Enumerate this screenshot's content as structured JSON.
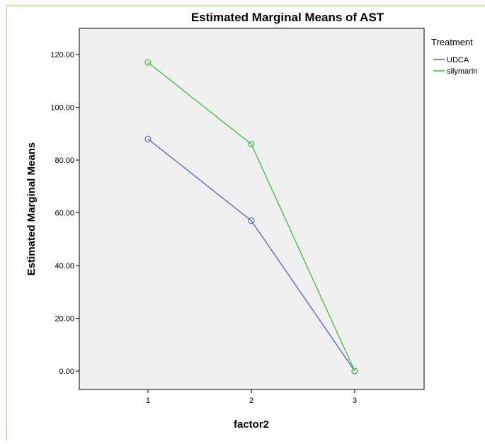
{
  "chart_data": {
    "type": "line",
    "title": "Estimated Marginal Means of AST",
    "xlabel": "factor2",
    "ylabel": "Estimated Marginal Means",
    "categories": [
      "1",
      "2",
      "3"
    ],
    "ylim": [
      0,
      120
    ],
    "yticks": [
      "0.00",
      "20.00",
      "40.00",
      "60.00",
      "80.00",
      "100.00",
      "120.00"
    ],
    "ytick_values": [
      0,
      20,
      40,
      60,
      80,
      100,
      120
    ],
    "grid": false,
    "legend": {
      "title": "Treatment",
      "placement": "right"
    },
    "series": [
      {
        "name": "UDCA",
        "color": "#5b6bbf",
        "values": [
          88,
          57,
          0
        ]
      },
      {
        "name": "silymarin",
        "color": "#46c246",
        "values": [
          117,
          86,
          0
        ]
      }
    ],
    "plot_background": "#f0f0f0",
    "frame_color": "#9fc46a"
  }
}
